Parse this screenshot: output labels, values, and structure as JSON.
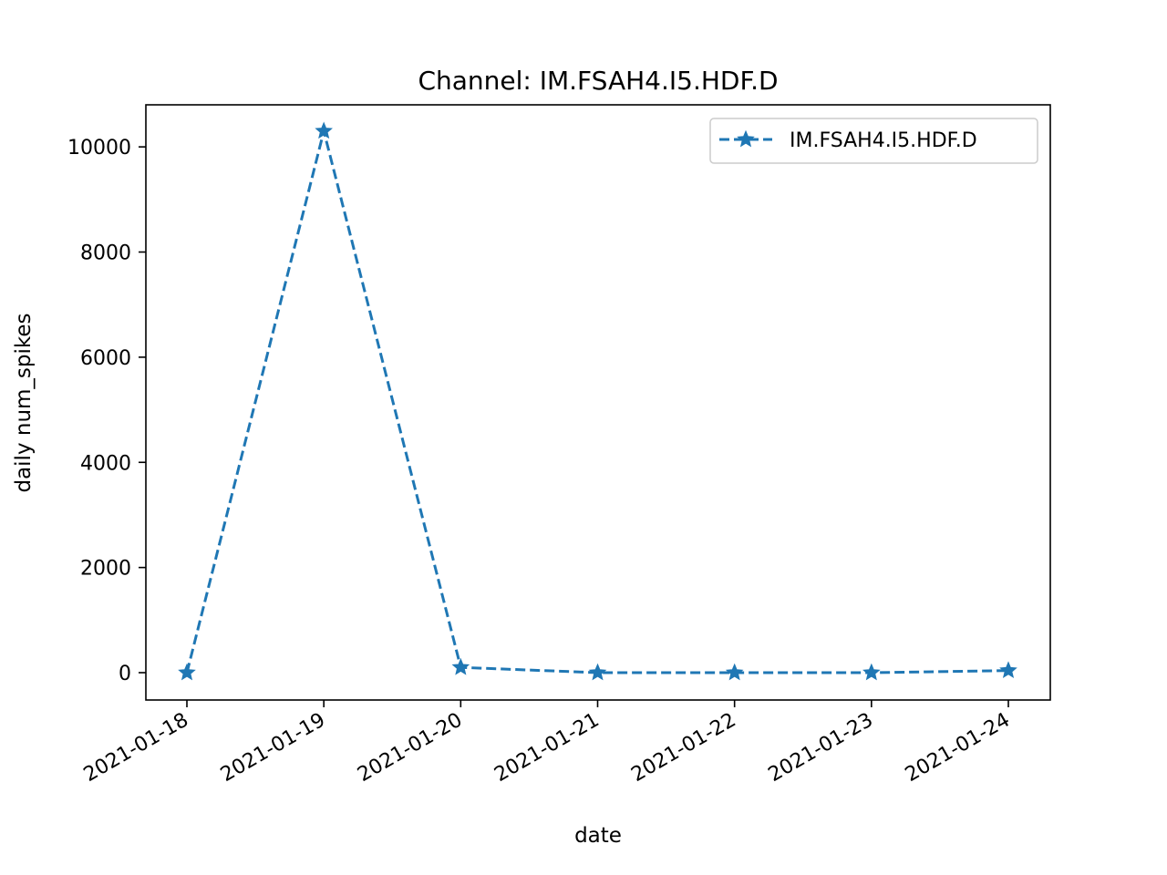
{
  "chart_data": {
    "type": "line",
    "title": "Channel: IM.FSAH4.I5.HDF.D",
    "xlabel": "date",
    "ylabel": "daily num_spikes",
    "x": [
      "2021-01-18",
      "2021-01-19",
      "2021-01-20",
      "2021-01-21",
      "2021-01-22",
      "2021-01-23",
      "2021-01-24"
    ],
    "xticks": [
      "2021-01-18",
      "2021-01-19",
      "2021-01-20",
      "2021-01-21",
      "2021-01-22",
      "2021-01-23",
      "2021-01-24"
    ],
    "yticks": [
      0,
      2000,
      4000,
      6000,
      8000,
      10000
    ],
    "ylim": [
      -520,
      10800
    ],
    "series": [
      {
        "name": "IM.FSAH4.I5.HDF.D",
        "values": [
          0,
          10300,
          100,
          0,
          0,
          0,
          40
        ],
        "color": "#1f77b4",
        "line_style": "dashed",
        "marker": "star"
      }
    ],
    "legend": "top-right",
    "grid": false
  }
}
